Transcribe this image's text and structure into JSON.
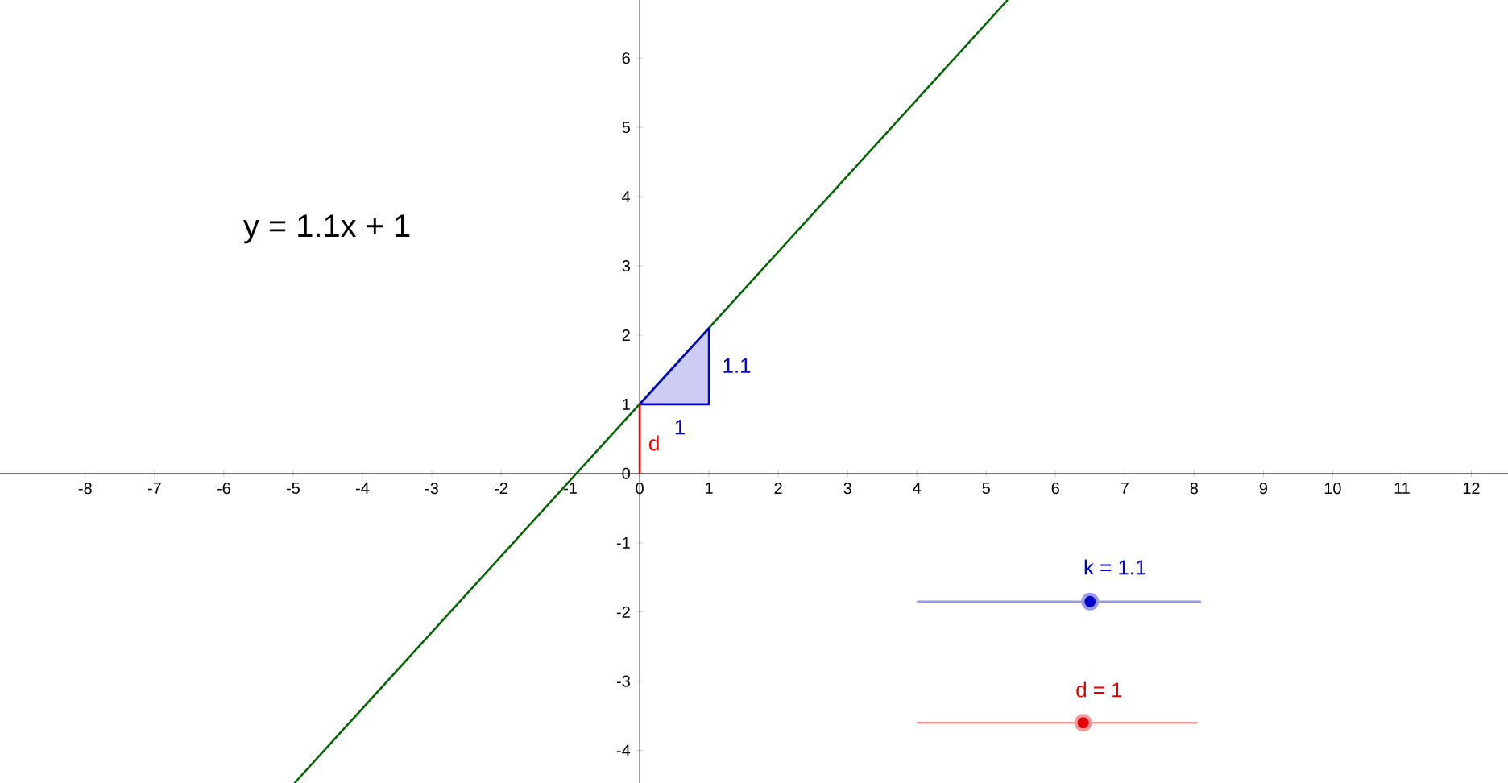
{
  "chart_data": {
    "type": "line",
    "xlim": [
      -9.23,
      12.53
    ],
    "ylim": [
      -4.47,
      6.84
    ],
    "xticks": [
      -8,
      -7,
      -6,
      -5,
      -4,
      -3,
      -2,
      -1,
      0,
      1,
      2,
      3,
      4,
      5,
      6,
      7,
      8,
      9,
      10,
      11,
      12
    ],
    "yticks": [
      -4,
      -3,
      -2,
      -1,
      0,
      1,
      2,
      3,
      4,
      5,
      6
    ],
    "grid": false,
    "series": [
      {
        "color": "#006400",
        "x": [
          -4.98,
          5.31
        ],
        "values": [
          -4.47,
          6.84
        ]
      },
      {
        "type": "area",
        "color": "#0000cc",
        "x": [
          0,
          1,
          1,
          0
        ],
        "values": [
          1,
          1,
          2.1,
          1
        ]
      },
      {
        "color": "#ff0000",
        "x": [
          0,
          0
        ],
        "values": [
          0,
          1
        ]
      },
      {
        "color": "#9999e6",
        "x": [
          4,
          8.1
        ],
        "values": [
          -1.85,
          -1.85
        ]
      },
      {
        "type": "scatter",
        "color": "#0000cc",
        "x": [
          6.5
        ],
        "values": [
          -1.85
        ]
      },
      {
        "color": "#f29999",
        "x": [
          4,
          8.05
        ],
        "values": [
          -3.6,
          -3.6
        ]
      },
      {
        "type": "scatter",
        "color": "#e00000",
        "x": [
          6.4
        ],
        "values": [
          -3.6
        ]
      }
    ],
    "annotations": [
      "y = 1.1x + 1",
      "1.1",
      "1",
      "d",
      "k = 1.1",
      "d = 1"
    ]
  }
}
